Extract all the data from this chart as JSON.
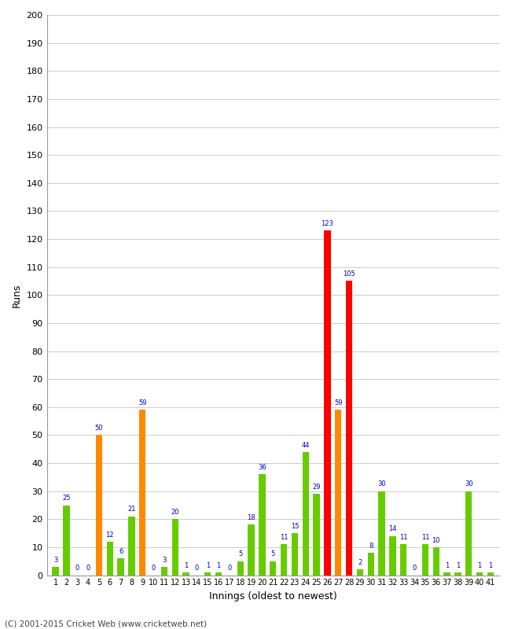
{
  "innings": [
    1,
    2,
    3,
    4,
    5,
    6,
    7,
    8,
    9,
    10,
    11,
    12,
    13,
    14,
    15,
    16,
    17,
    18,
    19,
    20,
    21,
    22,
    23,
    24,
    25,
    26,
    27,
    28,
    29,
    30,
    31,
    32,
    33,
    34,
    35,
    36,
    37,
    38,
    39,
    40,
    41
  ],
  "runs": [
    3,
    25,
    0,
    0,
    50,
    12,
    6,
    21,
    59,
    0,
    3,
    20,
    1,
    0,
    1,
    1,
    0,
    5,
    18,
    36,
    5,
    11,
    15,
    44,
    29,
    123,
    59,
    105,
    2,
    8,
    30,
    14,
    11,
    0,
    11,
    10,
    1,
    1,
    30,
    1,
    1
  ],
  "colors": [
    "#66cc00",
    "#66cc00",
    "#66cc00",
    "#66cc00",
    "#ff8800",
    "#66cc00",
    "#66cc00",
    "#66cc00",
    "#ff8800",
    "#66cc00",
    "#66cc00",
    "#66cc00",
    "#66cc00",
    "#66cc00",
    "#66cc00",
    "#66cc00",
    "#66cc00",
    "#66cc00",
    "#66cc00",
    "#66cc00",
    "#66cc00",
    "#66cc00",
    "#66cc00",
    "#66cc00",
    "#66cc00",
    "#ff0000",
    "#ff8800",
    "#ff0000",
    "#66cc00",
    "#66cc00",
    "#66cc00",
    "#66cc00",
    "#66cc00",
    "#66cc00",
    "#66cc00",
    "#66cc00",
    "#66cc00",
    "#66cc00",
    "#66cc00",
    "#66cc00",
    "#66cc00"
  ],
  "ylim": [
    0,
    200
  ],
  "yticks": [
    0,
    10,
    20,
    30,
    40,
    50,
    60,
    70,
    80,
    90,
    100,
    110,
    120,
    130,
    140,
    150,
    160,
    170,
    180,
    190,
    200
  ],
  "ylabel": "Runs",
  "xlabel": "Innings (oldest to newest)",
  "footer": "(C) 2001-2015 Cricket Web (www.cricketweb.net)",
  "value_color": "#0000cc",
  "bar_width": 0.6,
  "bg_color": "#ffffff",
  "grid_color": "#cccccc",
  "figsize": [
    6.5,
    8.0
  ],
  "dpi": 100
}
